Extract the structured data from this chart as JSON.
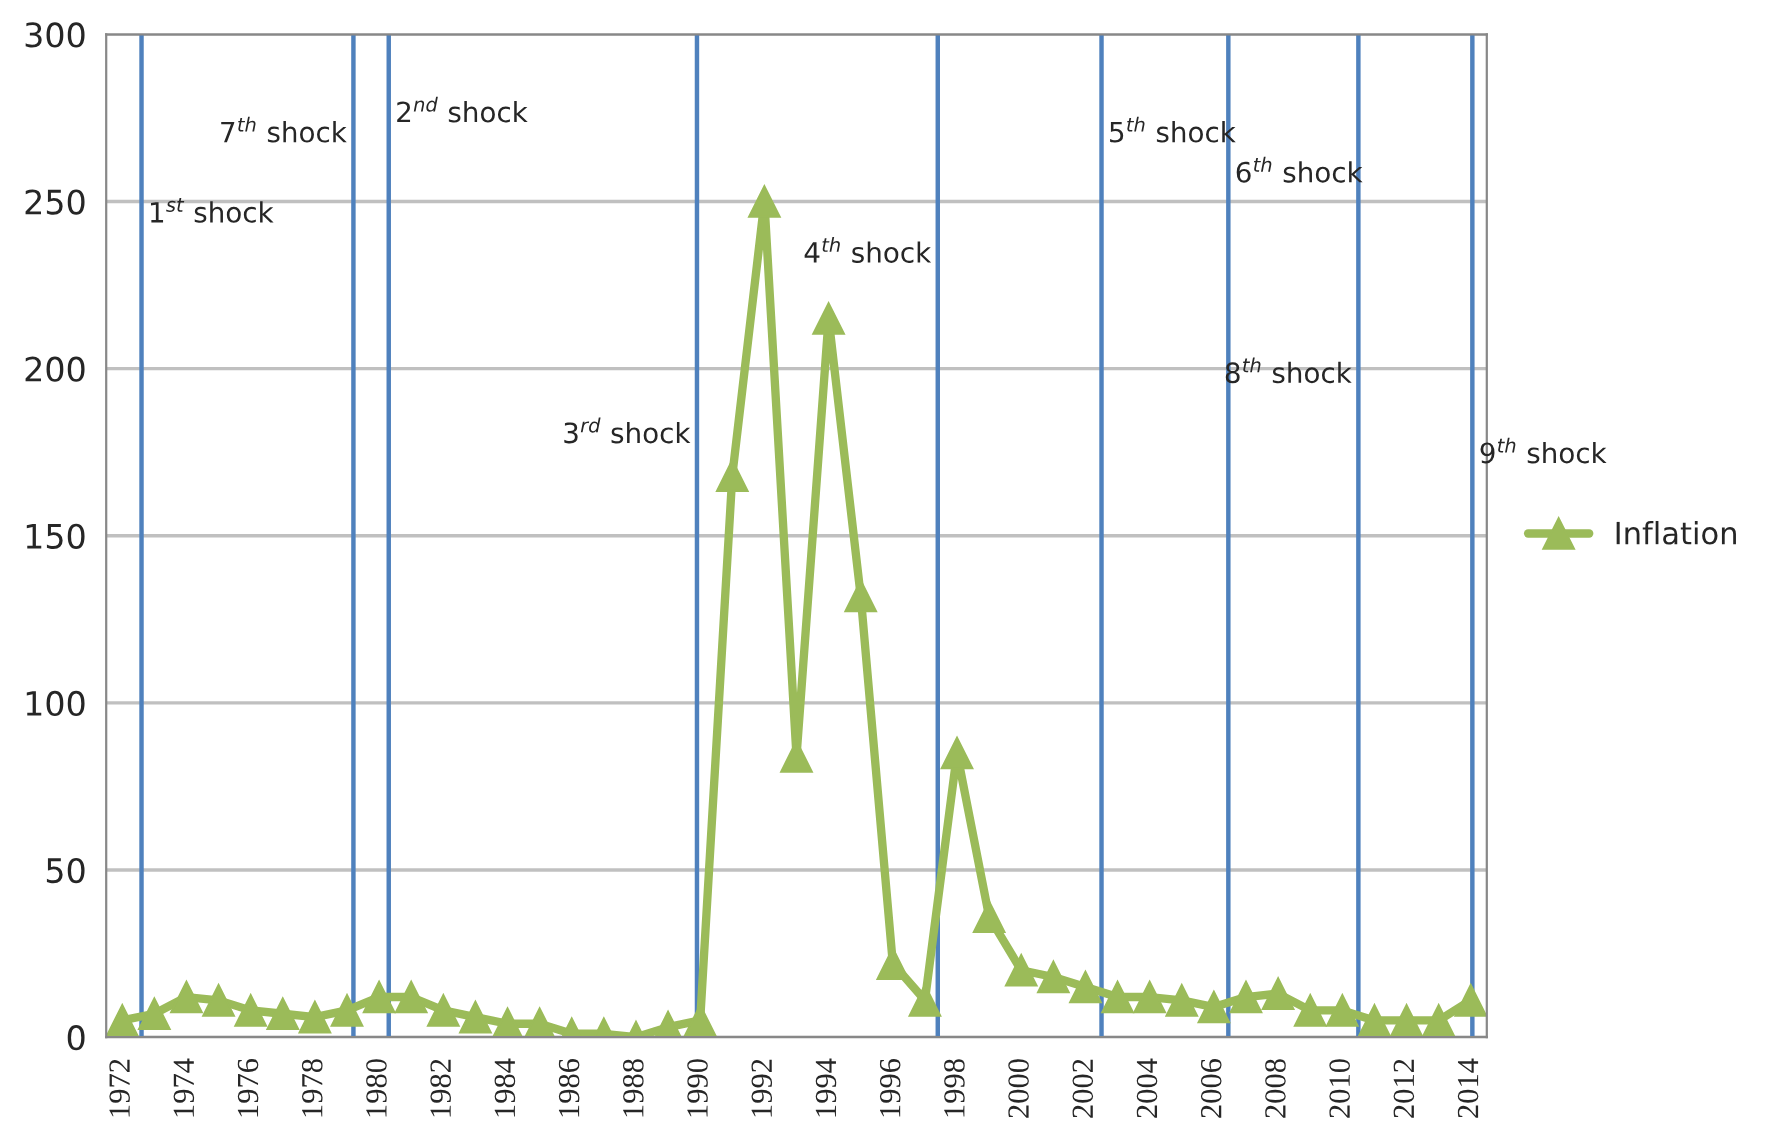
{
  "chart_data": {
    "type": "line",
    "x": [
      1972,
      1973,
      1974,
      1975,
      1976,
      1977,
      1978,
      1979,
      1980,
      1981,
      1982,
      1983,
      1984,
      1985,
      1986,
      1987,
      1988,
      1989,
      1990,
      1991,
      1992,
      1993,
      1994,
      1995,
      1996,
      1997,
      1998,
      1999,
      2000,
      2001,
      2002,
      2003,
      2004,
      2005,
      2006,
      2007,
      2008,
      2009,
      2010,
      2011,
      2012,
      2013,
      2014
    ],
    "series": [
      {
        "name": "Inflation",
        "color": "#9bbb59",
        "values": [
          5,
          7,
          12,
          11,
          8,
          7,
          6,
          8,
          12,
          12,
          8,
          6,
          4,
          4,
          1,
          1,
          0,
          3,
          5,
          168,
          250,
          84,
          215,
          132,
          22,
          11,
          85,
          36,
          20,
          18,
          15,
          12,
          12,
          11,
          9,
          12,
          13,
          8,
          8,
          5,
          5,
          5,
          11
        ]
      }
    ],
    "xlim": [
      1971.5,
      2014.5
    ],
    "xticks": [
      1972,
      1974,
      1976,
      1978,
      1980,
      1982,
      1984,
      1986,
      1988,
      1990,
      1992,
      1994,
      1996,
      1998,
      2000,
      2002,
      2004,
      2006,
      2008,
      2010,
      2012,
      2014
    ],
    "ylim": [
      0,
      300
    ],
    "yticks": [
      0,
      50,
      100,
      150,
      200,
      250,
      300
    ],
    "grid": "y",
    "legend": "right",
    "marker": "triangle",
    "line_style": "solid",
    "ref_lines": [
      {
        "axis": "x",
        "value": 1972.6,
        "label": "1$^{st}$ shock",
        "color": "#4f81bd"
      },
      {
        "axis": "x",
        "value": 1980.3,
        "label": "2$^{nd}$ shock",
        "color": "#4f81bd"
      },
      {
        "axis": "x",
        "value": 1989.9,
        "label": "3$^{rd}$ shock",
        "color": "#4f81bd"
      },
      {
        "axis": "x",
        "value": 1997.4,
        "label": "4$^{th}$ shock",
        "color": "#4f81bd"
      },
      {
        "axis": "x",
        "value": 2002.5,
        "label": "5$^{th}$ shock",
        "color": "#4f81bd"
      },
      {
        "axis": "x",
        "value": 2006.45,
        "label": "6$^{th}$ shock",
        "color": "#4f81bd"
      },
      {
        "axis": "x",
        "value": 1979.2,
        "label": "7$^{th}$ shock",
        "color": "#4f81bd"
      },
      {
        "axis": "x",
        "value": 2010.5,
        "label": "8$^{th}$ shock",
        "color": "#4f81bd"
      },
      {
        "axis": "x",
        "value": 2014.05,
        "label": "9$^{th}$ shock",
        "color": "#4f81bd"
      }
    ]
  }
}
